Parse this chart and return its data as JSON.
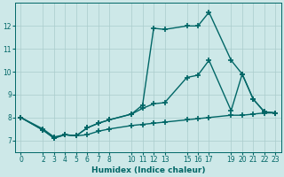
{
  "background_color": "#cde8e8",
  "grid_color": "#aacccc",
  "line_color": "#006666",
  "marker": "+",
  "markersize": 4,
  "markeredgewidth": 1.2,
  "linewidth": 1.0,
  "xlabel": "Humidex (Indice chaleur)",
  "xlim": [
    -0.5,
    23.5
  ],
  "ylim": [
    6.5,
    13.0
  ],
  "xticks": [
    0,
    2,
    3,
    4,
    5,
    6,
    7,
    8,
    10,
    11,
    12,
    13,
    15,
    16,
    17,
    19,
    20,
    21,
    22,
    23
  ],
  "yticks": [
    7,
    8,
    9,
    10,
    11,
    12
  ],
  "line1_x": [
    0,
    2,
    3,
    4,
    5,
    6,
    7,
    8,
    10,
    11,
    12,
    13,
    15,
    16,
    17,
    19,
    20,
    21,
    22,
    23
  ],
  "line1_y": [
    8.0,
    7.45,
    7.1,
    7.25,
    7.2,
    7.55,
    7.75,
    7.9,
    8.15,
    8.55,
    11.9,
    11.85,
    12.0,
    12.0,
    12.6,
    10.5,
    9.9,
    8.8,
    8.25,
    8.2
  ],
  "line2_x": [
    0,
    2,
    3,
    4,
    5,
    6,
    7,
    8,
    10,
    11,
    12,
    13,
    15,
    16,
    17,
    19,
    20,
    21,
    22,
    23
  ],
  "line2_y": [
    8.0,
    7.45,
    7.1,
    7.25,
    7.2,
    7.55,
    7.75,
    7.9,
    8.15,
    8.4,
    8.6,
    8.65,
    9.75,
    9.85,
    10.5,
    8.3,
    9.9,
    8.8,
    8.25,
    8.2
  ],
  "line3_x": [
    0,
    2,
    3,
    4,
    5,
    6,
    7,
    8,
    10,
    11,
    12,
    13,
    15,
    16,
    17,
    19,
    20,
    21,
    22,
    23
  ],
  "line3_y": [
    8.0,
    7.5,
    7.15,
    7.25,
    7.2,
    7.25,
    7.4,
    7.5,
    7.65,
    7.7,
    7.75,
    7.8,
    7.9,
    7.95,
    8.0,
    8.1,
    8.1,
    8.15,
    8.2,
    8.2
  ]
}
